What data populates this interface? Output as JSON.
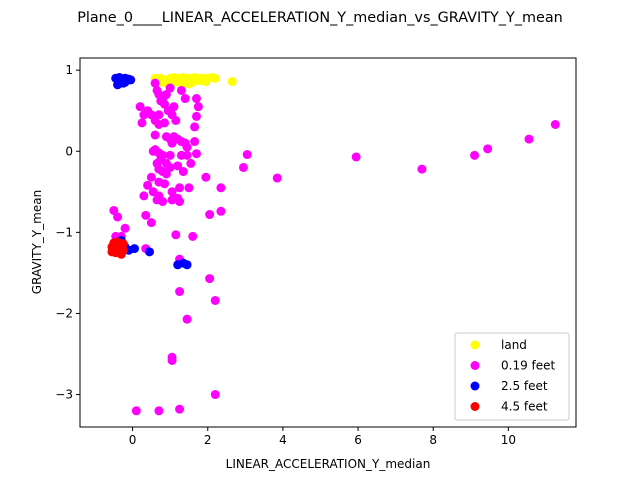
{
  "chart_data": {
    "type": "scatter",
    "title": "Plane_0____LINEAR_ACCELERATION_Y_median_vs_GRAVITY_Y_mean",
    "xlabel": "LINEAR_ACCELERATION_Y_median",
    "ylabel": "GRAVITY_Y_mean",
    "xlim": [
      -1.4,
      11.8
    ],
    "ylim": [
      -3.4,
      1.15
    ],
    "xticks": [
      0,
      2,
      4,
      6,
      8,
      10
    ],
    "yticks": [
      -3,
      -2,
      -1,
      0,
      1
    ],
    "grid": false,
    "legend_position": "lower-right",
    "series": [
      {
        "name": "land",
        "color": "#ffff00",
        "points": [
          [
            0.6,
            0.9
          ],
          [
            0.7,
            0.87
          ],
          [
            0.75,
            0.9
          ],
          [
            0.8,
            0.85
          ],
          [
            0.9,
            0.88
          ],
          [
            1.0,
            0.9
          ],
          [
            1.05,
            0.85
          ],
          [
            1.1,
            0.91
          ],
          [
            1.15,
            0.88
          ],
          [
            1.2,
            0.86
          ],
          [
            1.25,
            0.9
          ],
          [
            1.3,
            0.87
          ],
          [
            1.35,
            0.91
          ],
          [
            1.4,
            0.89
          ],
          [
            1.45,
            0.86
          ],
          [
            1.5,
            0.9
          ],
          [
            1.55,
            0.88
          ],
          [
            1.6,
            0.85
          ],
          [
            1.65,
            0.91
          ],
          [
            1.7,
            0.88
          ],
          [
            1.75,
            0.9
          ],
          [
            1.8,
            0.87
          ],
          [
            1.85,
            0.9
          ],
          [
            1.9,
            0.89
          ],
          [
            1.95,
            0.86
          ],
          [
            2.0,
            0.9
          ],
          [
            2.1,
            0.91
          ],
          [
            2.2,
            0.9
          ],
          [
            0.95,
            0.82
          ],
          [
            1.3,
            0.82
          ],
          [
            1.5,
            0.83
          ],
          [
            2.65,
            0.86
          ]
        ]
      },
      {
        "name": "0.19 feet",
        "color": "#ff00ff",
        "points": [
          [
            0.6,
            0.84
          ],
          [
            0.65,
            0.75
          ],
          [
            0.7,
            0.7
          ],
          [
            0.75,
            0.62
          ],
          [
            0.8,
            0.65
          ],
          [
            0.85,
            0.58
          ],
          [
            0.9,
            0.7
          ],
          [
            0.95,
            0.5
          ],
          [
            1.0,
            0.78
          ],
          [
            1.05,
            0.45
          ],
          [
            1.1,
            0.55
          ],
          [
            1.15,
            0.38
          ],
          [
            1.3,
            0.75
          ],
          [
            1.4,
            0.65
          ],
          [
            1.7,
            0.65
          ],
          [
            1.75,
            0.55
          ],
          [
            1.7,
            0.43
          ],
          [
            1.65,
            0.3
          ],
          [
            0.2,
            0.55
          ],
          [
            0.3,
            0.45
          ],
          [
            0.25,
            0.35
          ],
          [
            0.4,
            0.5
          ],
          [
            0.5,
            0.45
          ],
          [
            0.6,
            0.38
          ],
          [
            0.7,
            0.45
          ],
          [
            0.7,
            0.33
          ],
          [
            0.6,
            0.2
          ],
          [
            0.85,
            0.35
          ],
          [
            0.9,
            0.18
          ],
          [
            1.0,
            0.15
          ],
          [
            1.05,
            0.1
          ],
          [
            1.1,
            0.18
          ],
          [
            1.2,
            0.15
          ],
          [
            1.3,
            0.12
          ],
          [
            1.4,
            0.1
          ],
          [
            1.45,
            0.05
          ],
          [
            1.65,
            0.12
          ],
          [
            0.6,
            0.02
          ],
          [
            0.55,
            0.0
          ],
          [
            0.7,
            -0.02
          ],
          [
            0.75,
            -0.1
          ],
          [
            0.8,
            -0.05
          ],
          [
            0.9,
            -0.15
          ],
          [
            1.0,
            -0.05
          ],
          [
            1.3,
            -0.05
          ],
          [
            1.45,
            -0.05
          ],
          [
            1.55,
            -0.15
          ],
          [
            1.7,
            -0.03
          ],
          [
            0.65,
            -0.15
          ],
          [
            0.7,
            -0.22
          ],
          [
            0.8,
            -0.25
          ],
          [
            0.9,
            -0.28
          ],
          [
            1.0,
            -0.2
          ],
          [
            1.2,
            -0.18
          ],
          [
            1.35,
            -0.25
          ],
          [
            0.5,
            -0.32
          ],
          [
            0.4,
            -0.42
          ],
          [
            0.3,
            -0.55
          ],
          [
            0.55,
            -0.5
          ],
          [
            0.7,
            -0.38
          ],
          [
            0.85,
            -0.4
          ],
          [
            1.05,
            -0.5
          ],
          [
            1.25,
            -0.45
          ],
          [
            1.5,
            -0.45
          ],
          [
            0.7,
            -0.55
          ],
          [
            0.65,
            -0.6
          ],
          [
            0.8,
            -0.62
          ],
          [
            1.05,
            -0.6
          ],
          [
            1.2,
            -0.58
          ],
          [
            1.25,
            -0.62
          ],
          [
            1.95,
            -0.32
          ],
          [
            2.35,
            -0.45
          ],
          [
            2.05,
            -0.78
          ],
          [
            2.35,
            -0.74
          ],
          [
            0.35,
            -0.79
          ],
          [
            0.5,
            -0.88
          ],
          [
            -0.5,
            -0.73
          ],
          [
            -0.4,
            -0.81
          ],
          [
            -0.2,
            -0.95
          ],
          [
            -0.3,
            -1.05
          ],
          [
            -0.45,
            -1.05
          ],
          [
            1.15,
            -1.03
          ],
          [
            1.6,
            -1.05
          ],
          [
            0.35,
            -1.2
          ],
          [
            1.25,
            -1.33
          ],
          [
            1.25,
            -1.73
          ],
          [
            2.05,
            -1.57
          ],
          [
            2.2,
            -1.84
          ],
          [
            1.45,
            -2.07
          ],
          [
            1.05,
            -2.54
          ],
          [
            1.05,
            -2.58
          ],
          [
            2.2,
            -3.0
          ],
          [
            1.25,
            -3.18
          ],
          [
            0.7,
            -3.2
          ],
          [
            0.1,
            -3.2
          ],
          [
            2.95,
            -0.2
          ],
          [
            3.05,
            -0.04
          ],
          [
            3.85,
            -0.33
          ],
          [
            5.95,
            -0.07
          ],
          [
            7.7,
            -0.22
          ],
          [
            9.1,
            -0.05
          ],
          [
            9.45,
            0.03
          ],
          [
            10.55,
            0.15
          ],
          [
            11.25,
            0.33
          ]
        ]
      },
      {
        "name": "2.5 feet",
        "color": "#0000ff",
        "points": [
          [
            -0.45,
            0.9
          ],
          [
            -0.4,
            0.88
          ],
          [
            -0.35,
            0.91
          ],
          [
            -0.3,
            0.89
          ],
          [
            -0.25,
            0.86
          ],
          [
            -0.2,
            0.9
          ],
          [
            -0.15,
            0.88
          ],
          [
            -0.1,
            0.89
          ],
          [
            -0.05,
            0.88
          ],
          [
            -0.35,
            0.85
          ],
          [
            -0.25,
            0.84
          ],
          [
            -0.4,
            0.82
          ],
          [
            -0.3,
            0.87
          ],
          [
            -0.2,
            0.85
          ],
          [
            -0.3,
            -1.1
          ],
          [
            -0.25,
            -1.15
          ],
          [
            -0.35,
            -1.2
          ],
          [
            -0.2,
            -1.18
          ],
          [
            -0.1,
            -1.22
          ],
          [
            0.05,
            -1.2
          ],
          [
            0.45,
            -1.24
          ],
          [
            1.2,
            -1.4
          ],
          [
            1.35,
            -1.38
          ],
          [
            1.45,
            -1.4
          ],
          [
            -0.45,
            -1.18
          ]
        ]
      },
      {
        "name": "4.5 feet",
        "color": "#ff0000",
        "points": [
          [
            -0.55,
            -1.18
          ],
          [
            -0.5,
            -1.22
          ],
          [
            -0.45,
            -1.15
          ],
          [
            -0.4,
            -1.2
          ],
          [
            -0.35,
            -1.25
          ],
          [
            -0.3,
            -1.18
          ],
          [
            -0.25,
            -1.22
          ],
          [
            -0.5,
            -1.13
          ],
          [
            -0.45,
            -1.25
          ],
          [
            -0.35,
            -1.15
          ],
          [
            -0.3,
            -1.27
          ],
          [
            -0.4,
            -1.12
          ],
          [
            -0.55,
            -1.24
          ],
          [
            -0.25,
            -1.14
          ]
        ]
      }
    ]
  }
}
